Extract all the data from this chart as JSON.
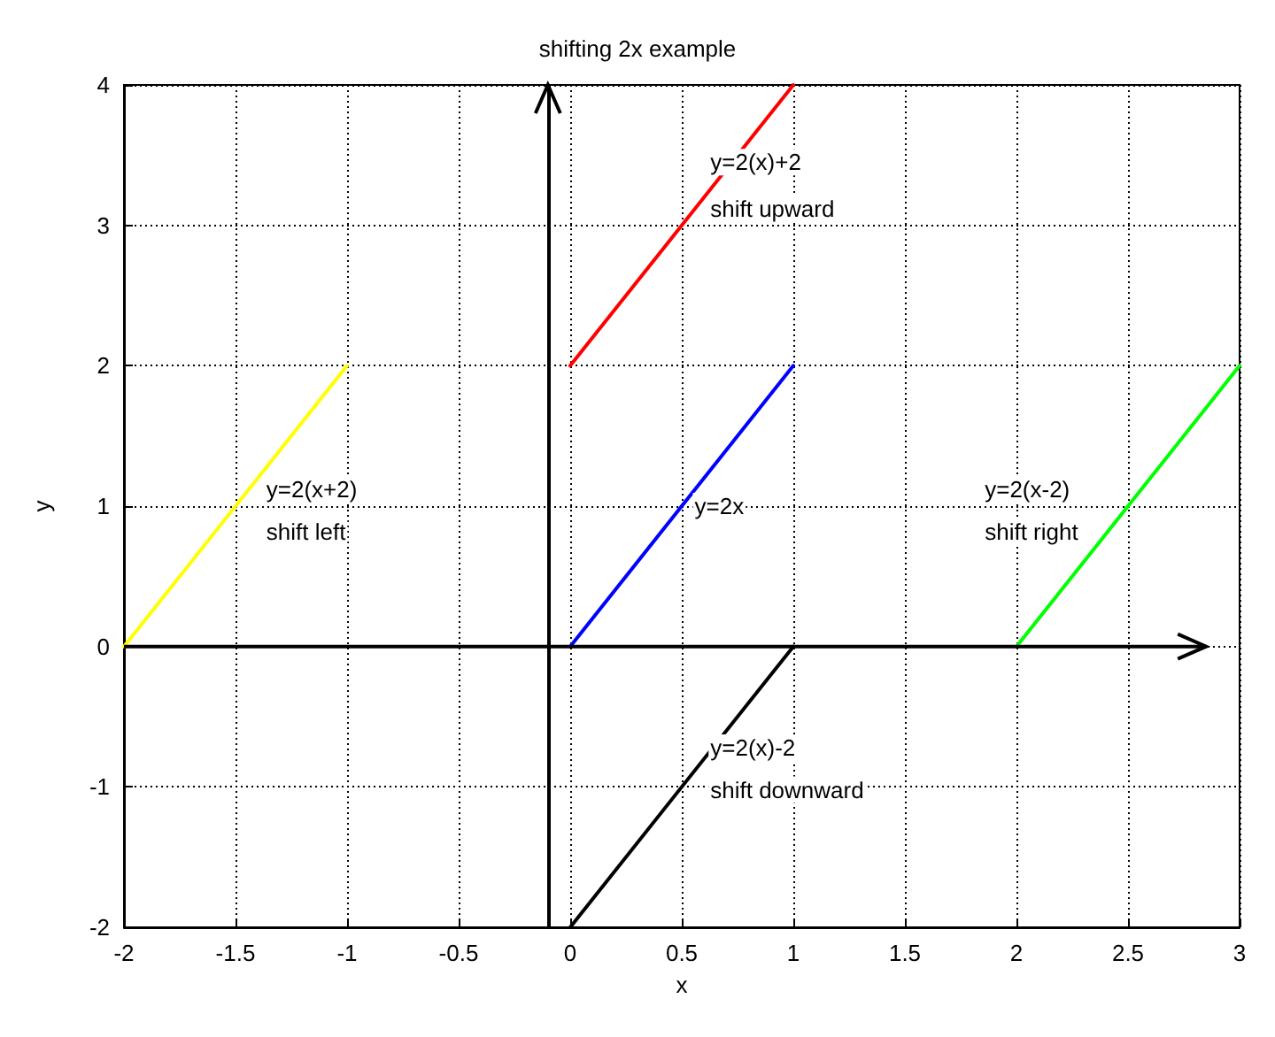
{
  "chart_data": {
    "type": "line",
    "title": "shifting 2x example",
    "xlabel": "x",
    "ylabel": "y",
    "series": [
      {
        "color": "#ffff00",
        "x": [
          -2,
          -1
        ],
        "values": [
          0,
          2
        ]
      },
      {
        "color": "#ff0000",
        "x": [
          0,
          1
        ],
        "values": [
          2,
          4
        ]
      },
      {
        "color": "#0000ff",
        "x": [
          0,
          1
        ],
        "values": [
          0,
          2
        ]
      },
      {
        "color": "#00ff00",
        "x": [
          2,
          3
        ],
        "values": [
          0,
          2
        ]
      },
      {
        "color": "#000000",
        "x": [
          0,
          1
        ],
        "values": [
          -2,
          0
        ]
      }
    ],
    "annotations": [
      "y=2(x)+2",
      "shift upward",
      "y=2(x+2)",
      "shift left",
      "y=2x",
      "y=2(x-2)",
      "shift right",
      "y=2(x)-2",
      "shift downward"
    ],
    "xlim": [
      -2,
      3
    ],
    "xticks": [
      -2,
      -1.5,
      -1,
      -0.5,
      0,
      0.5,
      1,
      1.5,
      2,
      2.5,
      3
    ],
    "ylim": [
      -2,
      4
    ],
    "yticks": [
      -2,
      -1,
      0,
      1,
      2,
      3,
      4
    ],
    "ref_lines": [
      {
        "axis": "x",
        "value": -0.1,
        "color": "#000000"
      }
    ],
    "grid": true,
    "marker": "none",
    "line_style": "solid"
  }
}
